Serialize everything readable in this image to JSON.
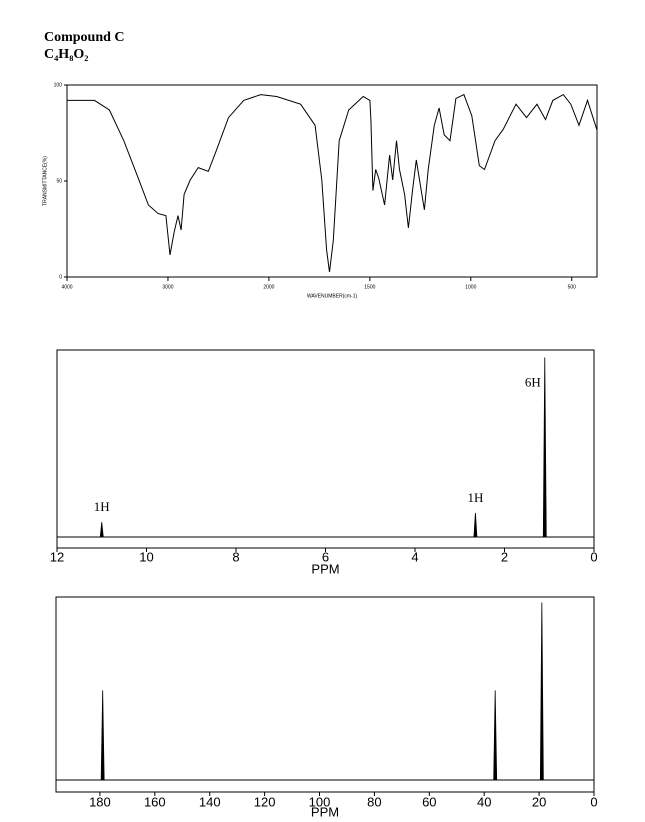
{
  "header": {
    "title": "Compound C",
    "formula": "C₄H₈O₂"
  },
  "chart_data": [
    {
      "type": "line",
      "x_label": "WAVENUMBER(cm-1)",
      "y_label": "TRANSMITTANCE(%)",
      "color": "#000000",
      "x": [
        4000,
        3728,
        3580,
        3437,
        3291,
        3194,
        3097,
        3020,
        2980,
        2940,
        2900,
        2870,
        2840,
        2780,
        2700,
        2600,
        2520,
        2400,
        2250,
        2080,
        1962,
        1843,
        1771,
        1738,
        1714,
        1700,
        1681,
        1652,
        1605,
        1533,
        1500,
        1495,
        1485,
        1471,
        1456,
        1427,
        1402,
        1387,
        1368,
        1353,
        1328,
        1309,
        1289,
        1270,
        1250,
        1230,
        1211,
        1181,
        1157,
        1132,
        1103,
        1074,
        1034,
        995,
        958,
        932,
        880,
        839,
        776,
        724,
        672,
        630,
        594,
        542,
        505,
        464,
        422,
        375
      ],
      "values": [
        92,
        92,
        87,
        71,
        51,
        37.5,
        33,
        32,
        11.5,
        23,
        32,
        24.5,
        43,
        50.5,
        57,
        55,
        66,
        83,
        92,
        95,
        94,
        90,
        79,
        50.5,
        14,
        2.6,
        19,
        71,
        87,
        94,
        92,
        82,
        45,
        56,
        51.5,
        37.5,
        63.5,
        50.5,
        71,
        56,
        43,
        25.5,
        45,
        61,
        48,
        35,
        56,
        79,
        88,
        74,
        71,
        93,
        95,
        84,
        58,
        56,
        71,
        77,
        90,
        83,
        90,
        82,
        92,
        95,
        90,
        79,
        92,
        76.5
      ],
      "xlim": [
        4000,
        375
      ],
      "ylim": [
        0,
        100
      ],
      "xticks": [
        4000,
        3000,
        2000,
        1500,
        1000,
        500
      ],
      "yticks": [
        0,
        50,
        100
      ]
    },
    {
      "type": "spectrum",
      "x_label": "PPM",
      "color": "#000000",
      "x": [
        11.0,
        2.65,
        1.1
      ],
      "values": [
        8,
        13,
        97
      ],
      "annotations": [
        "1H",
        "1H",
        "6H"
      ],
      "xlim": [
        12,
        0
      ],
      "ylim": [
        0,
        100
      ],
      "xticks": [
        12,
        10,
        8,
        6,
        4,
        2,
        0
      ]
    },
    {
      "type": "spectrum",
      "x_label": "PPM",
      "color": "#000000",
      "x": [
        179,
        36,
        19
      ],
      "values": [
        49,
        49,
        97
      ],
      "xlim": [
        196,
        0
      ],
      "ylim": [
        0,
        100
      ],
      "xticks": [
        180,
        160,
        140,
        120,
        100,
        80,
        60,
        40,
        20,
        0
      ]
    }
  ]
}
